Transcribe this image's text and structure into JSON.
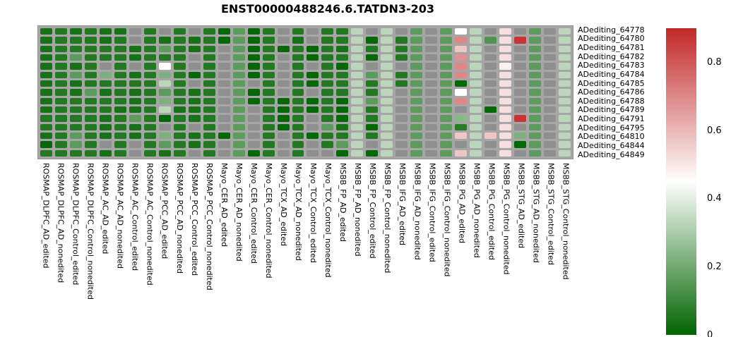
{
  "chart_data": {
    "type": "heatmap",
    "title": "ENST00000488246.6.TATDN3-203",
    "rows": [
      "ADediting_64778",
      "ADediting_64780",
      "ADediting_64781",
      "ADediting_64782",
      "ADediting_64783",
      "ADediting_64784",
      "ADediting_64785",
      "ADediting_64786",
      "ADediting_64788",
      "ADediting_64789",
      "ADediting_64791",
      "ADediting_64795",
      "ADediting_64810",
      "ADediting_64844",
      "ADediting_64849"
    ],
    "columns": [
      "ROSMAP_DLPFC_AD_edited",
      "ROSMAP_DLPFC_AD_nonedited",
      "ROSMAP_DLPFC_Control_edited",
      "ROSMAP_DLPFC_Control_nonedited",
      "ROSMAP_AC_AD_edited",
      "ROSMAP_AC_AD_nonedited",
      "ROSMAP_AC_Control_edited",
      "ROSMAP_AC_Control_nonedited",
      "ROSMAP_PCC_AD_edited",
      "ROSMAP_PCC_AD_nonedited",
      "ROSMAP_PCC_Control_edited",
      "ROSMAP_PCC_Control_nonedited",
      "Mayo_CER_AD_edited",
      "Mayo_CER_AD_nonedited",
      "Mayo_CER_Control_edited",
      "Mayo_CER_Control_nonedited",
      "Mayo_TCX_AD_edited",
      "Mayo_TCX_AD_nonedited",
      "Mayo_TCX_Control_edited",
      "Mayo_TCX_Control_nonedited",
      "MSBB_FP_AD_edited",
      "MSBB_FP_AD_nonedited",
      "MSBB_FP_Control_edited",
      "MSBB_FP_Control_nonedited",
      "MSBB_IFG_AD_edited",
      "MSBB_IFG_AD_nonedited",
      "MSBB_IFG_Control_edited",
      "MSBB_IFG_Control_nonedited",
      "MSBB_PG_AD_edited",
      "MSBB_PG_AD_nonedited",
      "MSBB_PG_Control_edited",
      "MSBB_PG_Control_nonedited",
      "MSBB_STG_AD_edited",
      "MSBB_STG_AD_nonedited",
      "MSBB_STG_Control_edited",
      "MSBB_STG_Control_nonedited"
    ],
    "values": [
      [
        0.04,
        0.06,
        0.04,
        0.06,
        0.04,
        0.04,
        null,
        0.06,
        null,
        0.06,
        null,
        0.06,
        0.01,
        0.16,
        0.01,
        0.06,
        null,
        0.06,
        null,
        0.06,
        0.06,
        0.33,
        null,
        0.33,
        null,
        0.16,
        null,
        0.16,
        0.45,
        0.33,
        null,
        0.52,
        null,
        0.16,
        null,
        0.33
      ],
      [
        0.04,
        0.06,
        0.06,
        0.06,
        0.04,
        0.06,
        null,
        0.06,
        0.04,
        0.06,
        0.04,
        0.06,
        0.01,
        0.16,
        0.01,
        0.06,
        null,
        0.04,
        null,
        0.06,
        0.06,
        0.33,
        0.01,
        0.33,
        0.06,
        0.16,
        null,
        0.16,
        0.7,
        0.33,
        0.14,
        0.52,
        0.87,
        0.16,
        null,
        0.33
      ],
      [
        0.04,
        0.06,
        0.06,
        0.06,
        0.06,
        0.06,
        0.04,
        0.06,
        0.16,
        0.06,
        0.04,
        0.06,
        null,
        0.16,
        0.01,
        0.06,
        0.01,
        0.06,
        0.01,
        0.06,
        0.04,
        0.33,
        0.06,
        0.33,
        0.06,
        0.16,
        null,
        0.16,
        0.57,
        0.33,
        null,
        0.52,
        null,
        0.16,
        null,
        0.33
      ],
      [
        0.04,
        0.06,
        0.16,
        0.06,
        0.06,
        0.06,
        0.04,
        0.06,
        0.06,
        0.06,
        null,
        0.06,
        null,
        0.16,
        0.01,
        0.06,
        null,
        0.06,
        0.01,
        0.06,
        0.06,
        0.33,
        0.01,
        0.33,
        0.06,
        0.16,
        null,
        0.16,
        0.68,
        0.33,
        null,
        0.52,
        null,
        0.16,
        null,
        0.33
      ],
      [
        0.04,
        0.06,
        0.04,
        0.06,
        null,
        0.06,
        null,
        0.06,
        0.45,
        0.06,
        null,
        0.06,
        null,
        0.16,
        0.01,
        0.06,
        null,
        0.06,
        null,
        0.06,
        0.01,
        0.33,
        null,
        0.33,
        null,
        0.16,
        null,
        0.16,
        0.7,
        0.33,
        null,
        0.48,
        null,
        0.16,
        null,
        0.33
      ],
      [
        0.04,
        0.06,
        0.16,
        0.06,
        0.22,
        0.06,
        0.04,
        0.06,
        0.22,
        0.06,
        0.01,
        0.06,
        null,
        0.16,
        0.01,
        0.06,
        null,
        0.06,
        0.01,
        0.06,
        0.06,
        0.33,
        0.16,
        0.33,
        0.06,
        0.16,
        null,
        0.16,
        0.7,
        0.33,
        null,
        0.52,
        null,
        0.16,
        null,
        0.33
      ],
      [
        0.04,
        0.06,
        0.04,
        0.06,
        0.06,
        0.06,
        0.06,
        0.06,
        0.33,
        0.06,
        null,
        0.06,
        null,
        0.16,
        null,
        0.06,
        null,
        0.06,
        0.01,
        0.06,
        0.06,
        0.33,
        0.06,
        0.33,
        0.06,
        0.16,
        null,
        0.16,
        0.01,
        0.33,
        null,
        0.52,
        null,
        0.16,
        null,
        0.33
      ],
      [
        0.04,
        0.06,
        0.04,
        0.16,
        0.04,
        0.06,
        0.04,
        0.06,
        0.16,
        0.06,
        0.04,
        0.06,
        null,
        0.16,
        0.01,
        0.06,
        null,
        0.06,
        null,
        0.06,
        0.06,
        0.33,
        0.06,
        0.33,
        null,
        0.16,
        null,
        0.16,
        0.45,
        0.33,
        null,
        0.52,
        null,
        0.16,
        null,
        0.33
      ],
      [
        0.04,
        0.06,
        0.06,
        0.06,
        0.06,
        0.06,
        0.04,
        0.06,
        0.22,
        0.06,
        0.04,
        0.06,
        null,
        0.16,
        0.01,
        0.06,
        0.01,
        0.06,
        0.01,
        0.06,
        0.01,
        0.33,
        0.16,
        0.33,
        null,
        0.16,
        null,
        0.16,
        0.7,
        0.33,
        null,
        0.52,
        null,
        0.16,
        null,
        0.33
      ],
      [
        0.04,
        0.06,
        0.06,
        0.06,
        0.06,
        0.04,
        0.04,
        0.06,
        0.33,
        0.04,
        0.04,
        0.06,
        null,
        0.16,
        null,
        0.06,
        0.01,
        0.06,
        0.01,
        0.06,
        0.01,
        0.33,
        0.06,
        0.33,
        null,
        0.16,
        null,
        0.16,
        null,
        0.33,
        0.01,
        0.52,
        null,
        0.16,
        null,
        0.33
      ],
      [
        0.06,
        0.06,
        0.06,
        0.06,
        0.04,
        0.06,
        0.16,
        0.06,
        0.01,
        0.06,
        0.04,
        0.06,
        null,
        0.16,
        null,
        0.06,
        0.01,
        0.06,
        null,
        0.06,
        0.01,
        0.33,
        0.06,
        0.33,
        null,
        0.16,
        null,
        0.16,
        0.24,
        0.33,
        null,
        0.52,
        0.87,
        0.16,
        null,
        0.33
      ],
      [
        0.06,
        0.06,
        0.06,
        0.06,
        0.04,
        0.06,
        0.04,
        0.06,
        null,
        0.06,
        null,
        0.06,
        null,
        0.16,
        null,
        0.06,
        0.01,
        0.06,
        null,
        0.16,
        0.04,
        0.33,
        0.01,
        0.33,
        null,
        0.16,
        null,
        0.16,
        0.07,
        0.33,
        null,
        0.52,
        null,
        0.16,
        null,
        0.33
      ],
      [
        0.04,
        0.06,
        0.16,
        0.06,
        0.04,
        0.06,
        0.04,
        0.06,
        0.22,
        0.06,
        0.04,
        0.06,
        0.01,
        0.16,
        null,
        0.06,
        null,
        0.06,
        0.01,
        0.06,
        0.06,
        0.33,
        0.06,
        0.33,
        null,
        0.16,
        null,
        0.16,
        0.57,
        0.33,
        0.57,
        0.52,
        0.22,
        0.16,
        null,
        0.33
      ],
      [
        0.01,
        0.06,
        0.16,
        0.06,
        null,
        0.06,
        null,
        0.06,
        0.16,
        0.06,
        0.04,
        0.06,
        null,
        0.16,
        null,
        0.06,
        null,
        0.06,
        null,
        0.06,
        0.16,
        0.33,
        null,
        0.33,
        null,
        0.16,
        null,
        0.16,
        null,
        0.33,
        null,
        0.52,
        0.01,
        0.16,
        null,
        0.33
      ],
      [
        0.06,
        0.06,
        0.06,
        0.06,
        0.04,
        0.06,
        null,
        0.06,
        0.04,
        0.06,
        null,
        0.06,
        null,
        0.16,
        0.01,
        0.06,
        null,
        0.06,
        null,
        null,
        0.01,
        0.33,
        0.01,
        0.33,
        null,
        0.16,
        null,
        0.16,
        0.57,
        0.33,
        null,
        0.52,
        null,
        0.16,
        null,
        0.33
      ]
    ],
    "na_value": null,
    "colorbar": {
      "ticks": [
        0.8,
        0.6,
        0.4,
        0.2,
        0
      ],
      "min": 0,
      "max": 0.9,
      "white_point": 0.45,
      "colors": {
        "low": "#006400",
        "mid": "#ffffff",
        "high": "#c22828",
        "na": "#8f8f8f",
        "panel": "#a6a6a6"
      }
    },
    "layout": {
      "legend_position": "right",
      "grid": false
    }
  }
}
